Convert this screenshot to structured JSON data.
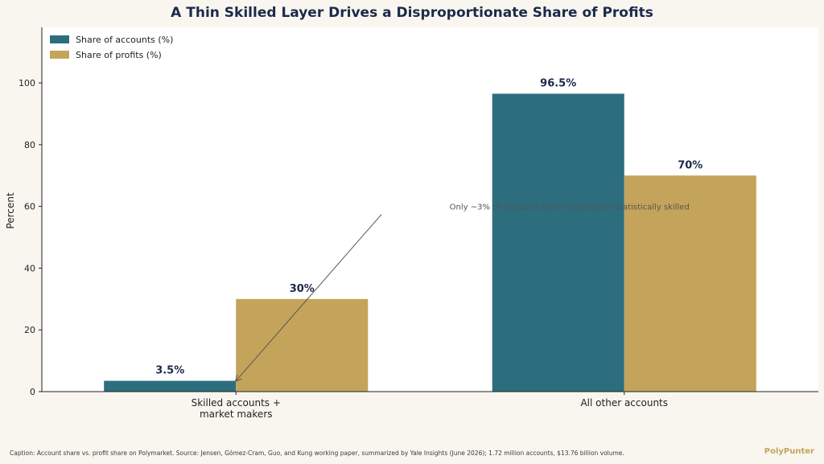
{
  "chart_data": {
    "type": "bar",
    "title": "A Thin Skilled Layer Drives a Disproportionate Share of Profits",
    "xlabel": "",
    "ylabel": "Percent",
    "ylim": [
      0,
      118
    ],
    "yticks": [
      0,
      20,
      40,
      60,
      80,
      100
    ],
    "categories": [
      [
        "Skilled accounts +",
        "market makers"
      ],
      [
        "All other accounts"
      ]
    ],
    "series": [
      {
        "name": "Share of accounts (%)",
        "values": [
          3.5,
          96.5
        ],
        "labels": [
          "3.5%",
          "96.5%"
        ],
        "color": "#2c6e7e"
      },
      {
        "name": "Share of profits (%)",
        "values": [
          30,
          70
        ],
        "labels": [
          "30%",
          "70%"
        ],
        "color": "#c4a45a"
      }
    ],
    "legend": "top-left",
    "grid": false,
    "annotation": {
      "text": "Only ~3% of accounts were classified as statistically skilled",
      "text_at": [
        0.55,
        60
      ],
      "arrow_to": [
        0,
        3.5
      ]
    }
  },
  "caption": "Caption: Account share vs. profit share on Polymarket. Source: Jensen, Gómez-Cram, Guo, and Kung working paper, summarized by Yale Insights (June 2026); 1.72 million accounts, $13.76 billion volume.",
  "brand": "PolyPunter",
  "colors": {
    "background": "#f9f6f0",
    "plot_background": "#ffffff",
    "title": "#1b2a4a",
    "data_label": "#1b2a4a"
  }
}
